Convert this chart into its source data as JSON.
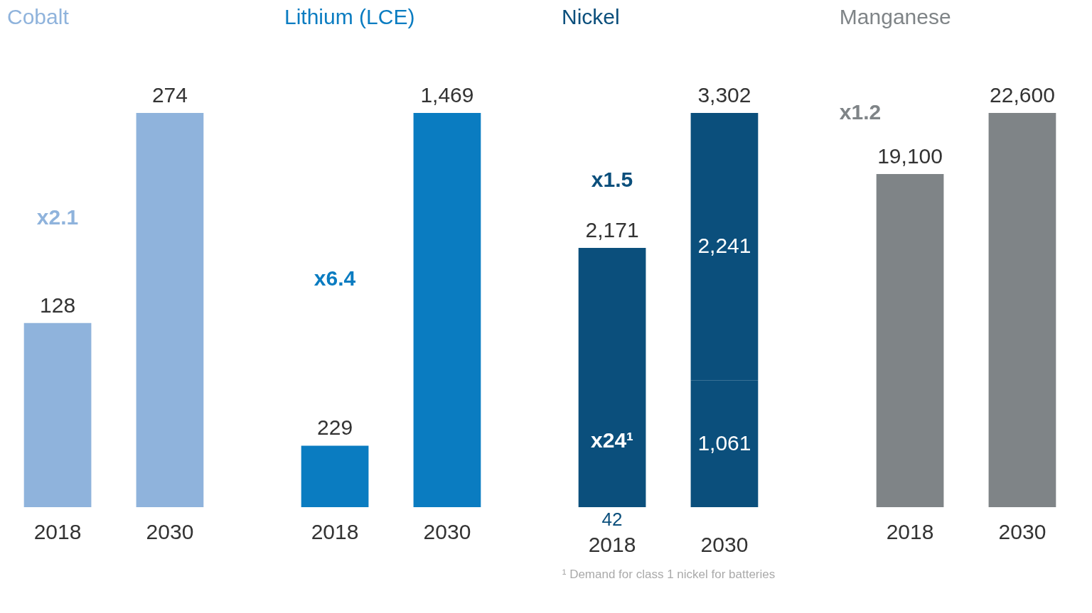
{
  "chart_data": [
    {
      "type": "bar",
      "title": "Cobalt",
      "categories": [
        "2018",
        "2030"
      ],
      "values": [
        128,
        274
      ],
      "value_labels": [
        "128",
        "274"
      ],
      "color": "#8fb3dc",
      "annotations": [
        "x2.1"
      ]
    },
    {
      "type": "bar",
      "title": "Lithium (LCE)",
      "categories": [
        "2018",
        "2030"
      ],
      "values": [
        229,
        1469
      ],
      "value_labels": [
        "229",
        "1,469"
      ],
      "color": "#0a7cc1",
      "annotations": [
        "x6.4"
      ]
    },
    {
      "type": "bar",
      "title": "Nickel",
      "categories": [
        "2018",
        "2030"
      ],
      "stacked": true,
      "series": [
        {
          "color": "#0b4f7c",
          "values": [
            42,
            1061
          ],
          "value_labels": [
            "42",
            "1,061"
          ]
        },
        {
          "color": "#0b4f7c",
          "values": [
            2129,
            2241
          ],
          "value_labels": [
            null,
            "2,241"
          ]
        }
      ],
      "totals": [
        "2,171",
        "3,302"
      ],
      "annotations": [
        "x1.5",
        "x24¹",
        "¹ Demand for class 1 nickel for batteries"
      ]
    },
    {
      "type": "bar",
      "title": "Manganese",
      "categories": [
        "2018",
        "2030"
      ],
      "values": [
        19100,
        22600
      ],
      "value_labels": [
        "19,100",
        "22,600"
      ],
      "color": "#7f8487",
      "annotations": [
        "x1.2"
      ]
    }
  ]
}
